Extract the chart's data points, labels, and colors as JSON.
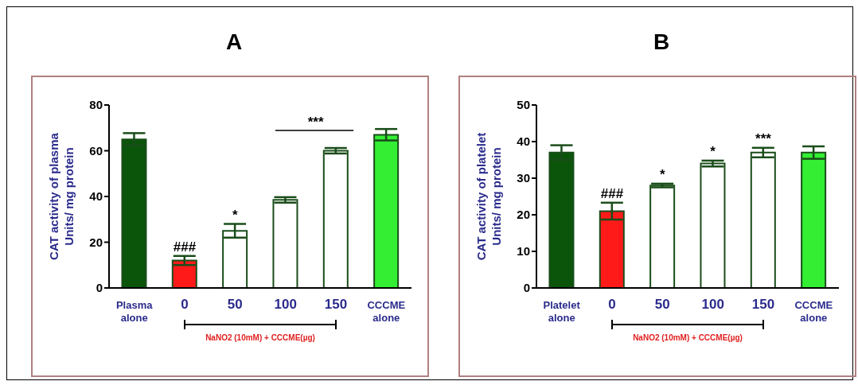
{
  "chart_data": [
    {
      "type": "bar",
      "title": "A",
      "ylabel": "CAT activity of plasma\nUnits/ mg protein",
      "categories": [
        "Plasma alone",
        "0",
        "50",
        "100",
        "150",
        "CCCME alone"
      ],
      "values": [
        65,
        12,
        25,
        38.5,
        60,
        67
      ],
      "errors": [
        2.7,
        2,
        3,
        1.2,
        1.2,
        2.5
      ],
      "colors": [
        "#0b550b",
        "#ff1a1a",
        "#ffffff",
        "#ffffff",
        "#ffffff",
        "#33ee33"
      ],
      "ylim": [
        0,
        80
      ],
      "yticks": [
        0,
        20,
        40,
        60,
        80
      ],
      "grid": false,
      "legend": false,
      "annotations": [
        {
          "text": "###",
          "x": "0",
          "y": 14
        },
        {
          "text": "*",
          "x": "50",
          "y": 28
        },
        "***",
        "NaNO2 (10mM) + CCCME(µg)"
      ]
    },
    {
      "type": "bar",
      "title": "B",
      "ylabel": "CAT activity of platelet\nUnits/ mg protein",
      "categories": [
        "Platelet alone",
        "0",
        "50",
        "100",
        "150",
        "CCCME alone"
      ],
      "values": [
        37,
        21,
        28,
        34,
        37,
        37
      ],
      "errors": [
        2,
        2.3,
        0.5,
        0.8,
        1.3,
        1.7
      ],
      "colors": [
        "#0b550b",
        "#ff1a1a",
        "#ffffff",
        "#ffffff",
        "#ffffff",
        "#33ee33"
      ],
      "ylim": [
        0,
        50
      ],
      "yticks": [
        0,
        10,
        20,
        30,
        40,
        50
      ],
      "grid": false,
      "legend": false,
      "annotations": [
        {
          "text": "###",
          "x": "0",
          "y": 23.3
        },
        {
          "text": "*",
          "x": "50",
          "y": 28.5
        },
        {
          "text": "*",
          "x": "100",
          "y": 34.8
        },
        {
          "text": "***",
          "x": "150",
          "y": 38.3
        },
        "NaNO2 (10mM) + CCCME(µg)"
      ]
    }
  ]
}
